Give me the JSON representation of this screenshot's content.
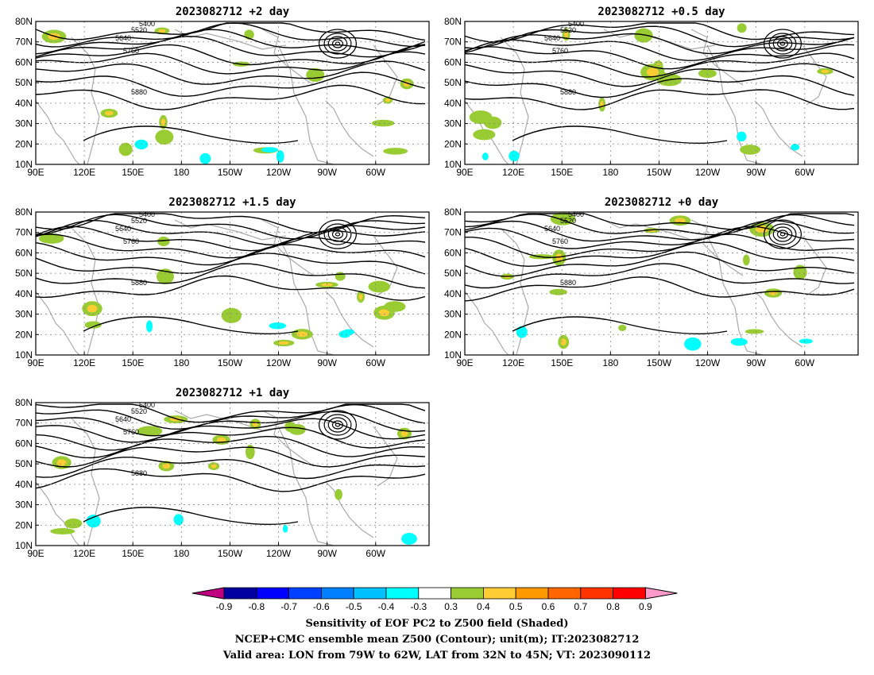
{
  "panels": [
    {
      "title": "2023082712 +2 day"
    },
    {
      "title": "2023082712 +0.5 day"
    },
    {
      "title": "2023082712 +1.5 day"
    },
    {
      "title": "2023082712 +0 day"
    },
    {
      "title": "2023082712 +1 day"
    }
  ],
  "map_axes": {
    "lat_labels": [
      "80N",
      "70N",
      "60N",
      "50N",
      "40N",
      "30N",
      "20N",
      "10N"
    ],
    "lon_labels": [
      "90E",
      "120E",
      "150E",
      "180",
      "150W",
      "120W",
      "90W",
      "60W"
    ]
  },
  "contour_levels": [
    "5400",
    "5520",
    "5640",
    "5760",
    "5880"
  ],
  "colorbar": {
    "ticks": [
      "-0.9",
      "-0.8",
      "-0.7",
      "-0.6",
      "-0.5",
      "-0.4",
      "-0.3",
      "0.3",
      "0.4",
      "0.5",
      "0.6",
      "0.7",
      "0.8",
      "0.9"
    ],
    "colors": [
      "#c00080",
      "#0000a0",
      "#0000ff",
      "#0040ff",
      "#0080ff",
      "#00c0ff",
      "#00ffff",
      "#ffffff",
      "#99cc33",
      "#ffcc33",
      "#ff9900",
      "#ff6600",
      "#ff3300",
      "#ff0000",
      "#ff99cc"
    ]
  },
  "caption": {
    "line1": "Sensitivity of EOF PC2 to Z500 field (Shaded)",
    "line2": "NCEP+CMC ensemble mean Z500 (Contour); unit(m); IT:2023082712",
    "line3": "Valid area: LON from 79W to 62W, LAT from 32N to 45N; VT: 2023090112"
  }
}
